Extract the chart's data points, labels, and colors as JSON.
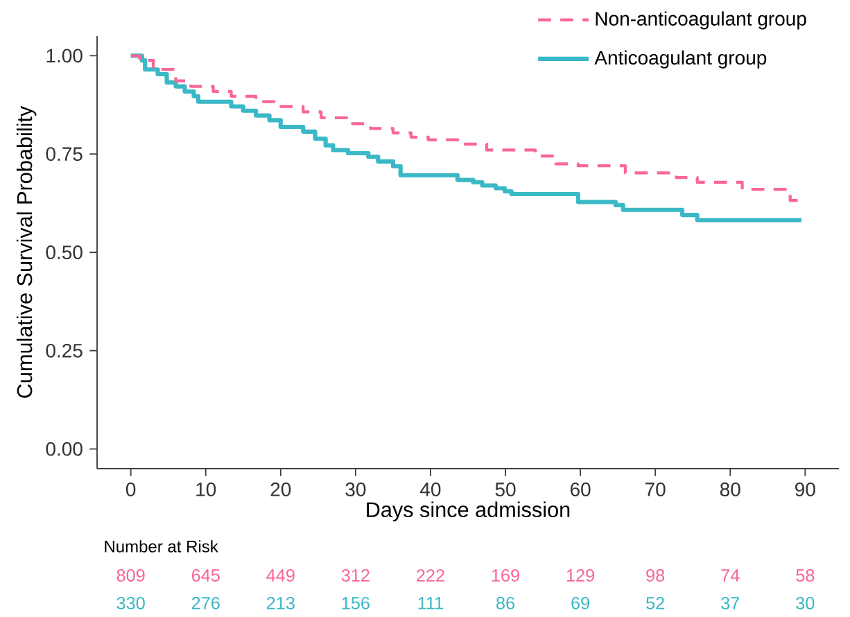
{
  "chart_data": [
    {
      "type": "step",
      "xlabel": "Days since admission",
      "ylabel": "Cumulative Survival Probability",
      "xlim": [
        -4.5,
        94.5
      ],
      "xticks": [
        0,
        10,
        20,
        30,
        40,
        50,
        60,
        70,
        80,
        90
      ],
      "ylim": [
        -0.05,
        1.05
      ],
      "yticks": [
        {
          "value": 0,
          "label": "0.00"
        },
        {
          "value": 0.25,
          "label": "0.25"
        },
        {
          "value": 0.5,
          "label": "0.50"
        },
        {
          "value": 0.75,
          "label": "0.75"
        },
        {
          "value": 1,
          "label": "1.00"
        }
      ],
      "legend": "top right",
      "series": [
        {
          "name": "Non-anticoagulant group",
          "color": "#f8669a",
          "line_style": "dashed",
          "x": [
            0,
            1.2,
            3,
            6,
            8,
            11,
            13.4,
            16.7,
            19.5,
            23,
            25.4,
            29.6,
            32,
            35,
            37.4,
            39.7,
            43.9,
            47.5,
            54,
            56.7,
            59.7,
            66,
            72.8,
            75.6,
            81.6,
            88,
            89.5
          ],
          "values": [
            1,
            0.988,
            0.965,
            0.936,
            0.922,
            0.909,
            0.897,
            0.883,
            0.871,
            0.857,
            0.842,
            0.827,
            0.815,
            0.804,
            0.793,
            0.786,
            0.775,
            0.76,
            0.745,
            0.725,
            0.72,
            0.702,
            0.69,
            0.678,
            0.66,
            0.632,
            0.632
          ]
        },
        {
          "name": "Anticoagulant group",
          "color": "#3bb8c6",
          "line_style": "solid",
          "x": [
            0,
            1.5,
            1.9,
            3.6,
            4.8,
            6,
            7.2,
            8.4,
            9,
            13.4,
            15,
            16.7,
            18.5,
            20,
            23,
            24.6,
            26,
            27,
            29,
            31.7,
            33,
            35,
            36,
            43.6,
            45.7,
            46.9,
            48.7,
            49.9,
            50.8,
            59.7,
            64.7,
            65.7,
            73.6,
            75.6,
            89.5
          ],
          "values": [
            1,
            0.988,
            0.965,
            0.953,
            0.932,
            0.922,
            0.909,
            0.897,
            0.883,
            0.871,
            0.86,
            0.848,
            0.836,
            0.819,
            0.807,
            0.789,
            0.772,
            0.76,
            0.752,
            0.743,
            0.731,
            0.719,
            0.696,
            0.684,
            0.678,
            0.67,
            0.663,
            0.655,
            0.648,
            0.628,
            0.62,
            0.608,
            0.595,
            0.582,
            0.582
          ]
        }
      ]
    },
    {
      "type": "other",
      "title": "Number at Risk",
      "annotations": [
        "809",
        "645",
        "449",
        "312",
        "222",
        "169",
        "129",
        "98",
        "74",
        "58",
        "330",
        "276",
        "213",
        "156",
        "111",
        "86",
        "69",
        "52",
        "37",
        "30"
      ]
    }
  ]
}
